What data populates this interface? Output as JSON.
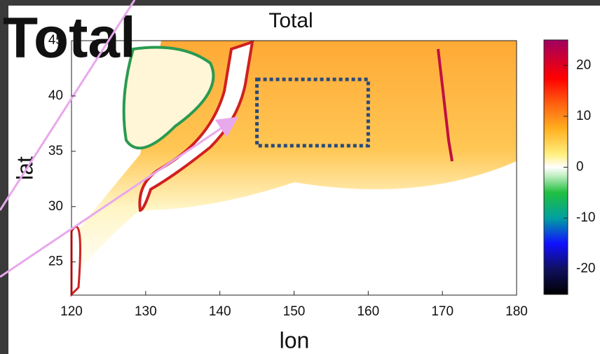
{
  "chart_data": {
    "type": "map",
    "title": "Total",
    "overlay_title": "Total",
    "xlabel": "lon",
    "ylabel": "lat",
    "xlim": [
      120,
      180
    ],
    "xticks": [
      120,
      130,
      140,
      150,
      160,
      170,
      180
    ],
    "ylim": [
      22,
      45
    ],
    "yticks": [
      25,
      30,
      35,
      40,
      45
    ],
    "clim": [
      -25,
      25
    ],
    "cticks": [
      -20,
      -10,
      0,
      10,
      20
    ],
    "box": {
      "lon": [
        145,
        160
      ],
      "lat": [
        35.5,
        41.5
      ]
    }
  }
}
